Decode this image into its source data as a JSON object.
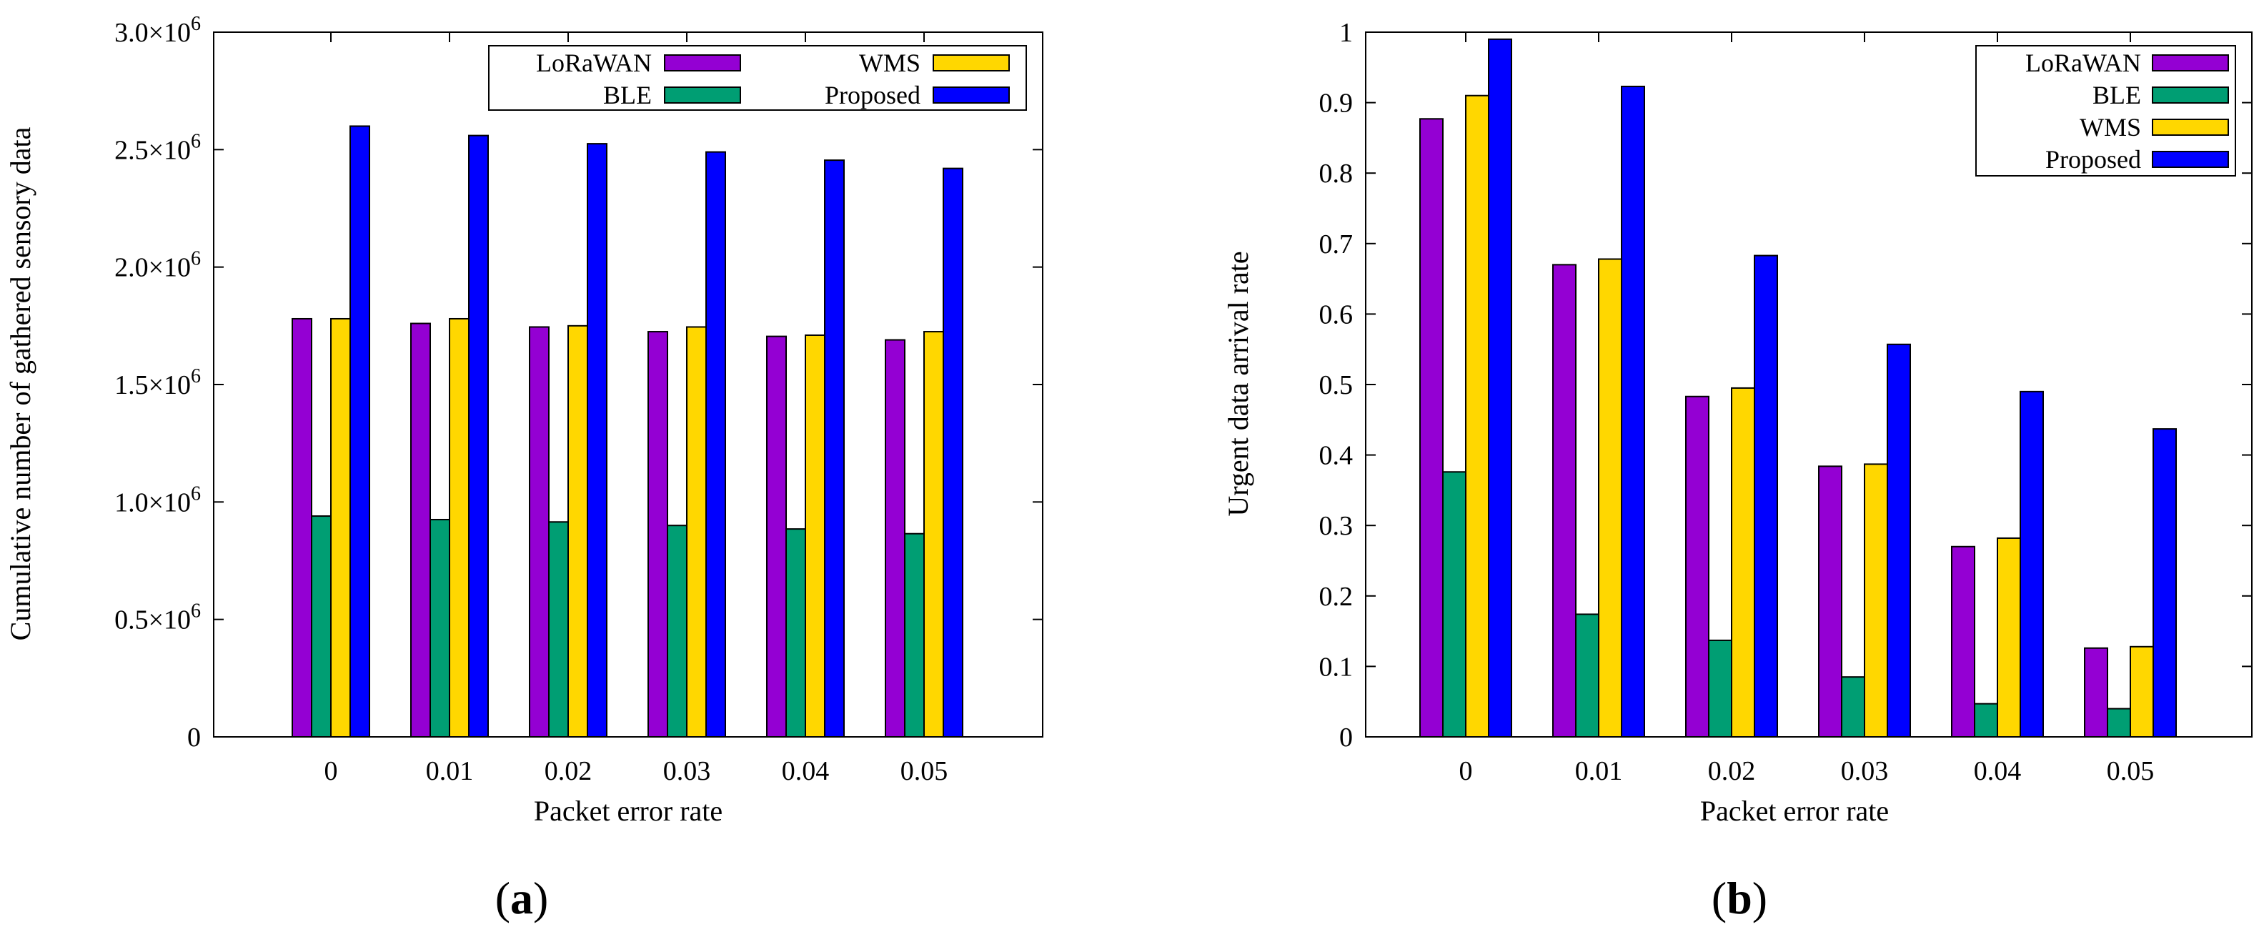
{
  "chart_data": [
    {
      "type": "bar",
      "caption_label": "a",
      "categories": [
        "0",
        "0.01",
        "0.02",
        "0.03",
        "0.04",
        "0.05"
      ],
      "series": [
        {
          "name": "LoRaWAN",
          "color": "#9400d3",
          "values": [
            1780000,
            1760000,
            1745000,
            1725000,
            1705000,
            1690000
          ]
        },
        {
          "name": "BLE",
          "color": "#009e73",
          "values": [
            940000,
            925000,
            915000,
            900000,
            885000,
            865000
          ]
        },
        {
          "name": "WMS",
          "color": "#ffd700",
          "values": [
            1780000,
            1780000,
            1750000,
            1745000,
            1710000,
            1725000
          ]
        },
        {
          "name": "Proposed",
          "color": "#0000ff",
          "values": [
            2600000,
            2560000,
            2525000,
            2490000,
            2455000,
            2420000
          ]
        }
      ],
      "title": "",
      "xlabel": "Packet error rate",
      "ylabel": "Cumulative number of gathered sensory data",
      "ylim": [
        0,
        3000000
      ],
      "yticks": [
        {
          "value": 0,
          "mant": "0",
          "exp": ""
        },
        {
          "value": 500000,
          "mant": "0.5×10",
          "exp": "6"
        },
        {
          "value": 1000000,
          "mant": "1.0×10",
          "exp": "6"
        },
        {
          "value": 1500000,
          "mant": "1.5×10",
          "exp": "6"
        },
        {
          "value": 2000000,
          "mant": "2.0×10",
          "exp": "6"
        },
        {
          "value": 2500000,
          "mant": "2.5×10",
          "exp": "6"
        },
        {
          "value": 3000000,
          "mant": "3.0×10",
          "exp": "6"
        }
      ],
      "legend": "top-right, two columns"
    },
    {
      "type": "bar",
      "caption_label": "b",
      "categories": [
        "0",
        "0.01",
        "0.02",
        "0.03",
        "0.04",
        "0.05"
      ],
      "series": [
        {
          "name": "LoRaWAN",
          "color": "#9400d3",
          "values": [
            0.877,
            0.67,
            0.483,
            0.384,
            0.27,
            0.126
          ]
        },
        {
          "name": "BLE",
          "color": "#009e73",
          "values": [
            0.376,
            0.174,
            0.137,
            0.085,
            0.047,
            0.04
          ]
        },
        {
          "name": "WMS",
          "color": "#ffd700",
          "values": [
            0.91,
            0.678,
            0.495,
            0.387,
            0.282,
            0.128
          ]
        },
        {
          "name": "Proposed",
          "color": "#0000ff",
          "values": [
            0.99,
            0.923,
            0.683,
            0.557,
            0.49,
            0.437
          ]
        }
      ],
      "title": "",
      "xlabel": "Packet error rate",
      "ylabel": "Urgent data arrival rate",
      "ylim": [
        0,
        1
      ],
      "yticks": [
        {
          "value": 0,
          "mant": "0",
          "exp": ""
        },
        {
          "value": 0.1,
          "mant": "0.1",
          "exp": ""
        },
        {
          "value": 0.2,
          "mant": "0.2",
          "exp": ""
        },
        {
          "value": 0.3,
          "mant": "0.3",
          "exp": ""
        },
        {
          "value": 0.4,
          "mant": "0.4",
          "exp": ""
        },
        {
          "value": 0.5,
          "mant": "0.5",
          "exp": ""
        },
        {
          "value": 0.6,
          "mant": "0.6",
          "exp": ""
        },
        {
          "value": 0.7,
          "mant": "0.7",
          "exp": ""
        },
        {
          "value": 0.8,
          "mant": "0.8",
          "exp": ""
        },
        {
          "value": 0.9,
          "mant": "0.9",
          "exp": ""
        },
        {
          "value": 1,
          "mant": "1",
          "exp": ""
        }
      ],
      "legend": "top-right, one column"
    }
  ]
}
